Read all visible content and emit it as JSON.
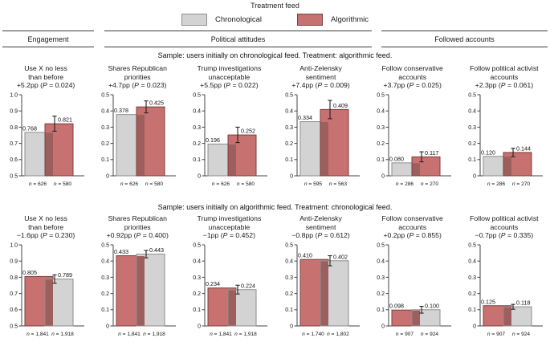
{
  "legend": {
    "title": "Treatment feed",
    "items": [
      {
        "key": "chronological",
        "label": "Chronological"
      },
      {
        "key": "algorithmic",
        "label": "Algorithmic"
      }
    ]
  },
  "colors": {
    "chronological": "#d3d3d3",
    "chronological_border": "#8e8e8e",
    "algorithmic": "#c77170",
    "algorithmic_border": "#7d3f3e",
    "overlap": "#9d5f5d",
    "axis": "#444444",
    "error": "#222222"
  },
  "groups": [
    {
      "label": "Engagement"
    },
    {
      "label": "Political attitudes"
    },
    {
      "label": "Followed accounts"
    }
  ],
  "chart_data": [
    {
      "type": "bar",
      "sample_caption": "Sample: users initially on chronological feed. Treatment: algorithmic feed.",
      "control_key": "chronological",
      "treatment_key": "algorithmic",
      "panels": [
        {
          "title_lines": [
            "Use X no less",
            "than before"
          ],
          "effect": "+5.2pp (P = 0.024)",
          "ylim": [
            0.5,
            1.0
          ],
          "yticks": [
            "1.0",
            "0.9",
            "0.8",
            "0.7",
            "0.6",
            "0.5"
          ],
          "control_value": 0.768,
          "control_label": "0.768",
          "control_n": "n = 626",
          "treatment_value": 0.821,
          "treatment_label": "0.821",
          "treatment_n": "n = 580",
          "ci_low": 0.775,
          "ci_high": 0.868
        },
        {
          "title_lines": [
            "Shares Republican",
            "priorities"
          ],
          "effect": "+4.7pp (P = 0.023)",
          "ylim": [
            0,
            0.5
          ],
          "yticks": [
            "0.5",
            "0.4",
            "0.3",
            "0.2",
            "0.1",
            "0"
          ],
          "control_value": 0.378,
          "control_label": "0.378",
          "control_n": "n = 626",
          "treatment_value": 0.425,
          "treatment_label": "0.425",
          "treatment_n": "n = 580",
          "ci_low": 0.388,
          "ci_high": 0.462
        },
        {
          "title_lines": [
            "Trump investigations",
            "unacceptable"
          ],
          "effect": "+5.5pp (P = 0.022)",
          "ylim": [
            0,
            0.5
          ],
          "yticks": [
            "0.5",
            "0.4",
            "0.3",
            "0.2",
            "0.1",
            "0"
          ],
          "control_value": 0.196,
          "control_label": "0.196",
          "control_n": "n = 626",
          "treatment_value": 0.252,
          "treatment_label": "0.252",
          "treatment_n": "n = 580",
          "ci_low": 0.205,
          "ci_high": 0.3
        },
        {
          "title_lines": [
            "Anti-Zelensky",
            "sentiment"
          ],
          "effect": "+7.4pp (P = 0.009)",
          "ylim": [
            0,
            0.5
          ],
          "yticks": [
            "0.5",
            "0.4",
            "0.3",
            "0.2",
            "0.1",
            "0"
          ],
          "control_value": 0.334,
          "control_label": "0.334",
          "control_n": "n = 595",
          "treatment_value": 0.409,
          "treatment_label": "0.409",
          "treatment_n": "n = 563",
          "ci_low": 0.352,
          "ci_high": 0.465
        },
        {
          "title_lines": [
            "Follow conservative",
            "accounts"
          ],
          "effect": "+3.7pp (P = 0.025)",
          "ylim": [
            0,
            0.5
          ],
          "yticks": [
            "0.5",
            "0.4",
            "0.3",
            "0.2",
            "0.1",
            "0"
          ],
          "control_value": 0.08,
          "control_label": "0.080",
          "control_n": "n = 286",
          "treatment_value": 0.117,
          "treatment_label": "0.117",
          "treatment_n": "n = 270",
          "ci_low": 0.086,
          "ci_high": 0.148
        },
        {
          "title_lines": [
            "Follow political activist",
            "accounts"
          ],
          "effect": "+2.3pp (P = 0.061)",
          "ylim": [
            0,
            0.5
          ],
          "yticks": [
            "0.5",
            "0.4",
            "0.3",
            "0.2",
            "0.1",
            "0"
          ],
          "control_value": 0.12,
          "control_label": "0.120",
          "control_n": "n = 286",
          "treatment_value": 0.144,
          "treatment_label": "0.144",
          "treatment_n": "n = 270",
          "ci_low": 0.118,
          "ci_high": 0.17
        }
      ]
    },
    {
      "type": "bar",
      "sample_caption": "Sample: users initially on algorithmic feed. Treatment: chronological feed.",
      "control_key": "algorithmic",
      "treatment_key": "chronological",
      "panels": [
        {
          "title_lines": [
            "Use X no less",
            "than before"
          ],
          "effect": "−1.6pp (P = 0.230)",
          "ylim": [
            0.5,
            1.0
          ],
          "yticks": [
            "1.0",
            "0.9",
            "0.8",
            "0.7",
            "0.6",
            "0.5"
          ],
          "control_value": 0.805,
          "control_label": "0.805",
          "control_n": "n = 1,841",
          "treatment_value": 0.789,
          "treatment_label": "0.789",
          "treatment_n": "n = 1,918",
          "ci_low": 0.763,
          "ci_high": 0.815
        },
        {
          "title_lines": [
            "Shares Republican",
            "priorities"
          ],
          "effect": "+0.92pp (P = 0.400)",
          "ylim": [
            0,
            0.5
          ],
          "yticks": [
            "0.5",
            "0.4",
            "0.3",
            "0.2",
            "0.1",
            "0"
          ],
          "control_value": 0.433,
          "control_label": "0.433",
          "control_n": "n = 1,841",
          "treatment_value": 0.443,
          "treatment_label": "0.443",
          "treatment_n": "n = 1,918",
          "ci_low": 0.42,
          "ci_high": 0.466
        },
        {
          "title_lines": [
            "Trump investigations",
            "unacceptable"
          ],
          "effect": "−1pp (P = 0.452)",
          "ylim": [
            0,
            0.5
          ],
          "yticks": [
            "0.5",
            "0.4",
            "0.3",
            "0.2",
            "0.1",
            "0"
          ],
          "control_value": 0.234,
          "control_label": "0.234",
          "control_n": "n = 1,841",
          "treatment_value": 0.224,
          "treatment_label": "0.224",
          "treatment_n": "n = 1,918",
          "ci_low": 0.197,
          "ci_high": 0.251
        },
        {
          "title_lines": [
            "Anti-Zelensky",
            "sentiment"
          ],
          "effect": "−0.8pp (P = 0.612)",
          "ylim": [
            0,
            0.5
          ],
          "yticks": [
            "0.5",
            "0.4",
            "0.3",
            "0.2",
            "0.1",
            "0"
          ],
          "control_value": 0.41,
          "control_label": "0.410",
          "control_n": "n = 1,740",
          "treatment_value": 0.402,
          "treatment_label": "0.402",
          "treatment_n": "n = 1,802",
          "ci_low": 0.371,
          "ci_high": 0.433
        },
        {
          "title_lines": [
            "Follow conservative",
            "accounts"
          ],
          "effect": "+0.2pp (P = 0.855)",
          "ylim": [
            0,
            0.5
          ],
          "yticks": [
            "0.5",
            "0.4",
            "0.3",
            "0.2",
            "0.1",
            "0"
          ],
          "control_value": 0.098,
          "control_label": "0.098",
          "control_n": "n = 907",
          "treatment_value": 0.1,
          "treatment_label": "0.100",
          "treatment_n": "n = 924",
          "ci_low": 0.079,
          "ci_high": 0.121
        },
        {
          "title_lines": [
            "Follow political activist",
            "accounts"
          ],
          "effect": "−0.7pp (P = 0.335)",
          "ylim": [
            0,
            0.5
          ],
          "yticks": [
            "0.5",
            "0.4",
            "0.3",
            "0.2",
            "0.1",
            "0"
          ],
          "control_value": 0.125,
          "control_label": "0.125",
          "control_n": "n = 907",
          "treatment_value": 0.118,
          "treatment_label": "0.118",
          "treatment_n": "n = 924",
          "ci_low": 0.103,
          "ci_high": 0.133
        }
      ]
    }
  ]
}
